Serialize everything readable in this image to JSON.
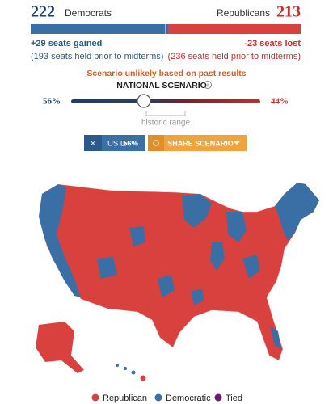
{
  "header": {
    "dem_seats": 222,
    "dem_label": "Democrats",
    "rep_label": "Republicans",
    "rep_seats": 213,
    "dem_change": "+29 seats gained",
    "dem_prior": "(193 seats held prior to midterms)",
    "rep_change": "-23 seats lost",
    "rep_prior": "(236 seats held prior to midterms)"
  },
  "scenario": {
    "warning": "Scenario unlikely based on past results",
    "title": "NATIONAL SCENARIO",
    "dem_share": "56%",
    "rep_share": "44%",
    "range_label": "historic range"
  },
  "buttons": {
    "close": "×",
    "party": "US D",
    "party_share": "56%",
    "share": "SHARE SCENARIO"
  },
  "legend": [
    {
      "label": "Republican",
      "color": "#d9413f"
    },
    {
      "label": "Democratic",
      "color": "#3a6fa5"
    },
    {
      "label": "Tied",
      "color": "#6a1b7a"
    }
  ]
}
